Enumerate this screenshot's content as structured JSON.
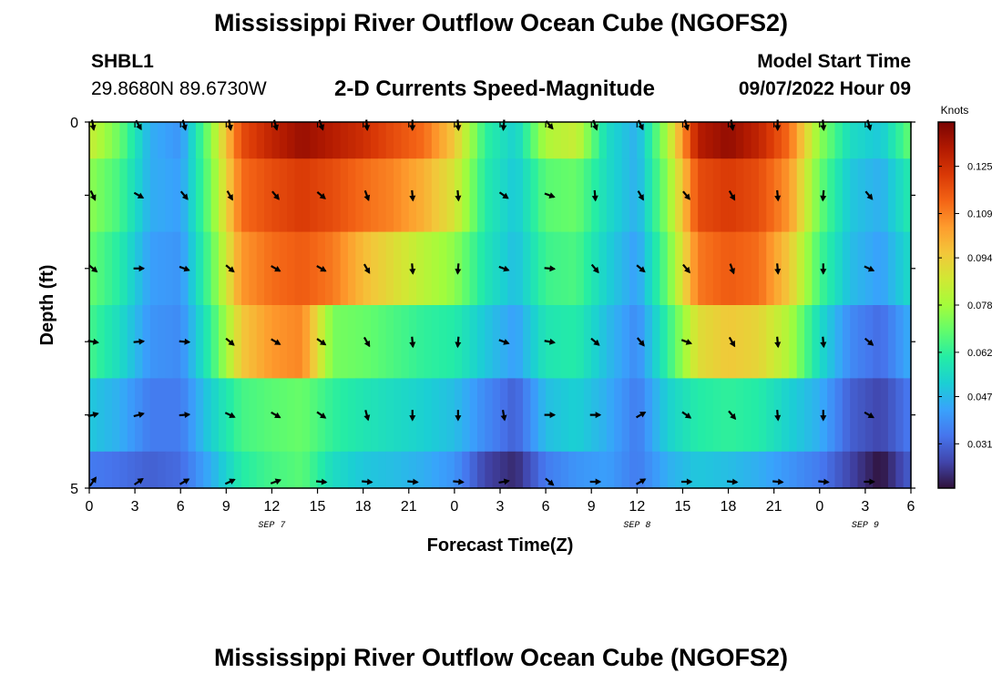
{
  "page": {
    "title": "Mississippi River Outflow Ocean Cube (NGOFS2)",
    "title_repeat": "Mississippi River Outflow Ocean Cube (NGOFS2)",
    "station_id": "SHBL1",
    "coordinates": "29.8680N  89.6730W",
    "subtitle": "2-D Currents Speed-Magnitude",
    "model_start_label": "Model Start Time",
    "model_start_value": "09/07/2022 Hour 09"
  },
  "chart_data": {
    "type": "heatmap",
    "title": "2-D Currents Speed-Magnitude",
    "xlabel": "Forecast Time(Z)",
    "ylabel": "Depth (ft)",
    "x_range_hours": [
      0,
      54
    ],
    "x_tick_labels": [
      "0",
      "3",
      "6",
      "9",
      "12",
      "15",
      "18",
      "21",
      "0",
      "3",
      "6",
      "9",
      "12",
      "15",
      "18",
      "21",
      "0",
      "3",
      "6"
    ],
    "date_labels": [
      {
        "text": "SEP 7",
        "hour": 12
      },
      {
        "text": "SEP 8",
        "hour": 36
      },
      {
        "text": "SEP 9",
        "hour": 51
      }
    ],
    "y_tick_labels": [
      {
        "text": "0",
        "depth": 0
      },
      {
        "text": "5",
        "depth": 5
      }
    ],
    "ylim": [
      0,
      5
    ],
    "colorbar": {
      "label": "Knots",
      "min": 0.016,
      "max": 0.14,
      "ticks": [
        "0.125",
        "0.109",
        "0.094",
        "0.078",
        "0.062",
        "0.047",
        "0.031"
      ],
      "tick_values": [
        0.125,
        0.109,
        0.094,
        0.078,
        0.062,
        0.047,
        0.031
      ],
      "colors": [
        "#30123b",
        "#4145ab",
        "#4675ed",
        "#39a2fc",
        "#1bcfd4",
        "#24eca6",
        "#61fc6c",
        "#a4fc3b",
        "#d1e834",
        "#f3c63a",
        "#fe9b2d",
        "#f36315",
        "#d93806",
        "#b11901",
        "#7a0403"
      ]
    },
    "time_hours": [
      0,
      2,
      4,
      6,
      8,
      10,
      12,
      14,
      16,
      18,
      20,
      22,
      24,
      26,
      28,
      30,
      32,
      34,
      36,
      38,
      40,
      42,
      44,
      46,
      48,
      50,
      52,
      54
    ],
    "layers": [
      {
        "depth_band": "0-0.5",
        "speeds": [
          0.085,
          0.07,
          0.045,
          0.04,
          0.075,
          0.118,
          0.128,
          0.135,
          0.13,
          0.125,
          0.118,
          0.112,
          0.095,
          0.062,
          0.052,
          0.08,
          0.085,
          0.055,
          0.045,
          0.08,
          0.13,
          0.136,
          0.128,
          0.112,
          0.075,
          0.055,
          0.05,
          0.07
        ]
      },
      {
        "depth_band": "0.5-1.5",
        "speeds": [
          0.075,
          0.065,
          0.045,
          0.042,
          0.072,
          0.112,
          0.118,
          0.122,
          0.118,
          0.112,
          0.108,
          0.1,
          0.088,
          0.06,
          0.05,
          0.068,
          0.07,
          0.055,
          0.045,
          0.075,
          0.118,
          0.122,
          0.118,
          0.105,
          0.07,
          0.05,
          0.045,
          0.06
        ]
      },
      {
        "depth_band": "1.5-2.5",
        "speeds": [
          0.07,
          0.06,
          0.042,
          0.04,
          0.068,
          0.105,
          0.112,
          0.115,
          0.11,
          0.098,
          0.09,
          0.082,
          0.075,
          0.058,
          0.048,
          0.064,
          0.066,
          0.052,
          0.042,
          0.07,
          0.11,
          0.115,
          0.112,
          0.095,
          0.065,
          0.048,
          0.042,
          0.055
        ]
      },
      {
        "depth_band": "2.5-3.5",
        "speeds": [
          0.065,
          0.055,
          0.04,
          0.038,
          0.062,
          0.095,
          0.105,
          0.108,
          0.072,
          0.07,
          0.066,
          0.062,
          0.06,
          0.05,
          0.042,
          0.058,
          0.06,
          0.048,
          0.038,
          0.062,
          0.09,
          0.095,
          0.092,
          0.08,
          0.055,
          0.038,
          0.032,
          0.045
        ]
      },
      {
        "depth_band": "3.5-4.5",
        "speeds": [
          0.05,
          0.045,
          0.035,
          0.035,
          0.052,
          0.065,
          0.068,
          0.07,
          0.062,
          0.058,
          0.055,
          0.052,
          0.048,
          0.038,
          0.03,
          0.048,
          0.052,
          0.045,
          0.035,
          0.052,
          0.06,
          0.062,
          0.06,
          0.052,
          0.045,
          0.03,
          0.025,
          0.035
        ]
      },
      {
        "depth_band": "4.5-5",
        "speeds": [
          0.035,
          0.033,
          0.03,
          0.032,
          0.045,
          0.06,
          0.065,
          0.068,
          0.055,
          0.05,
          0.048,
          0.045,
          0.04,
          0.025,
          0.02,
          0.035,
          0.04,
          0.042,
          0.035,
          0.045,
          0.05,
          0.048,
          0.045,
          0.04,
          0.035,
          0.025,
          0.016,
          0.03
        ]
      }
    ],
    "arrow_hours": [
      0,
      3,
      6,
      9,
      12,
      15,
      18,
      21,
      24,
      27,
      30,
      33,
      36,
      39,
      42,
      45,
      48,
      51
    ],
    "arrow_depths": [
      0,
      1,
      2,
      3,
      4,
      5
    ],
    "arrow_directions_deg": [
      [
        170,
        150,
        165,
        170,
        165,
        160,
        175,
        180,
        175,
        185,
        140,
        160,
        155,
        165,
        170,
        180,
        175,
        165
      ],
      [
        155,
        120,
        140,
        150,
        140,
        130,
        160,
        175,
        175,
        125,
        110,
        175,
        150,
        140,
        150,
        175,
        185,
        140
      ],
      [
        130,
        90,
        110,
        130,
        120,
        120,
        150,
        175,
        185,
        110,
        95,
        140,
        130,
        140,
        160,
        175,
        180,
        115
      ],
      [
        100,
        85,
        95,
        130,
        120,
        125,
        150,
        175,
        185,
        110,
        100,
        130,
        140,
        110,
        150,
        175,
        175,
        130
      ],
      [
        75,
        75,
        85,
        115,
        120,
        125,
        165,
        180,
        180,
        170,
        90,
        90,
        60,
        125,
        140,
        175,
        180,
        120
      ],
      [
        35,
        55,
        60,
        65,
        70,
        95,
        95,
        95,
        95,
        80,
        130,
        90,
        60,
        90,
        95,
        95,
        95,
        90
      ]
    ]
  }
}
